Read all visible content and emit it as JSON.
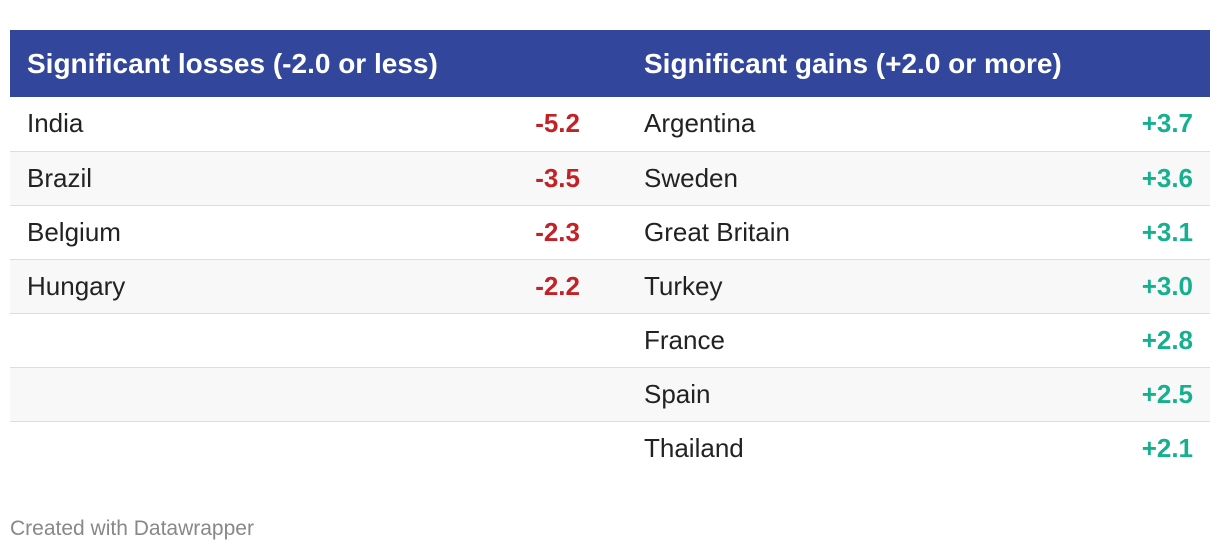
{
  "chart_data": {
    "type": "table",
    "colors": {
      "header_bg": "#32479b",
      "loss": "#c42127",
      "gain": "#16b08e"
    },
    "losses": {
      "header": "Significant losses (-2.0 or less)",
      "rows": [
        {
          "country": "India",
          "value": "-5.2"
        },
        {
          "country": "Brazil",
          "value": "-3.5"
        },
        {
          "country": "Belgium",
          "value": "-2.3"
        },
        {
          "country": "Hungary",
          "value": "-2.2"
        }
      ]
    },
    "gains": {
      "header": "Significant gains (+2.0 or more)",
      "rows": [
        {
          "country": "Argentina",
          "value": "+3.7"
        },
        {
          "country": "Sweden",
          "value": "+3.6"
        },
        {
          "country": "Great Britain",
          "value": "+3.1"
        },
        {
          "country": "Turkey",
          "value": "+3.0"
        },
        {
          "country": "France",
          "value": "+2.8"
        },
        {
          "country": "Spain",
          "value": "+2.5"
        },
        {
          "country": "Thailand",
          "value": "+2.1"
        }
      ]
    }
  },
  "footer": {
    "credit": "Created with Datawrapper"
  }
}
